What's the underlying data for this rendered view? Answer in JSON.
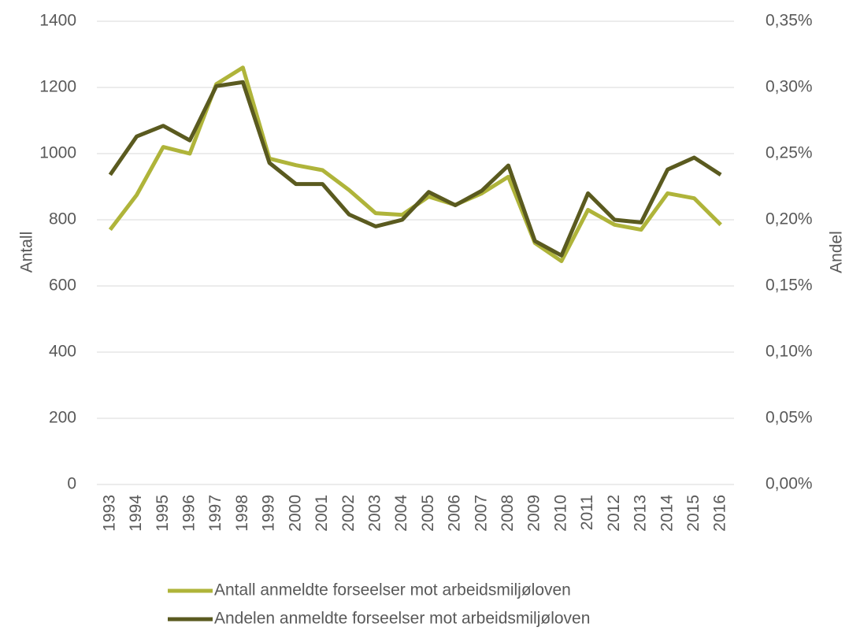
{
  "chart_data": {
    "type": "line",
    "y_label": "Antall",
    "y2_label": "Andel",
    "categories": [
      "1993",
      "1994",
      "1995",
      "1996",
      "1997",
      "1998",
      "1999",
      "2000",
      "2001",
      "2002",
      "2003",
      "2004",
      "2005",
      "2006",
      "2007",
      "2008",
      "2009",
      "2010",
      "2011",
      "2012",
      "2013",
      "2014",
      "2015",
      "2016"
    ],
    "series": [
      {
        "name": "Antall anmeldte forseelser mot arbeidsmiljøloven",
        "color": "#afb43a",
        "values": [
          770,
          875,
          1020,
          1000,
          1210,
          1260,
          985,
          965,
          950,
          890,
          820,
          815,
          870,
          845,
          880,
          930,
          730,
          675,
          830,
          785,
          770,
          880,
          865,
          785
        ]
      },
      {
        "name": "Andelen anmeldte forseelser mot arbeidsmiljøloven",
        "color": "#5a5a1f",
        "axis": "y2",
        "values": [
          0.234,
          0.263,
          0.271,
          0.26,
          0.301,
          0.304,
          0.243,
          0.227,
          0.227,
          0.204,
          0.195,
          0.2,
          0.221,
          0.211,
          0.222,
          0.241,
          0.184,
          0.173,
          0.22,
          0.2,
          0.198,
          0.238,
          0.247,
          0.234
        ]
      }
    ],
    "ylim": [
      0,
      1400
    ],
    "yticks": [
      0,
      200,
      400,
      600,
      800,
      1000,
      1200,
      1400
    ],
    "y2lim": [
      0,
      0.35
    ],
    "y2ticks": [
      {
        "value": 0,
        "label": "0,00%"
      },
      {
        "value": 0.05,
        "label": "0,05%"
      },
      {
        "value": 0.1,
        "label": "0,10%"
      },
      {
        "value": 0.15,
        "label": "0,15%"
      },
      {
        "value": 0.2,
        "label": "0,20%"
      },
      {
        "value": 0.25,
        "label": "0,25%"
      },
      {
        "value": 0.3,
        "label": "0,30%"
      },
      {
        "value": 0.35,
        "label": "0,35%"
      }
    ],
    "grid": true,
    "legend": "bottom"
  }
}
